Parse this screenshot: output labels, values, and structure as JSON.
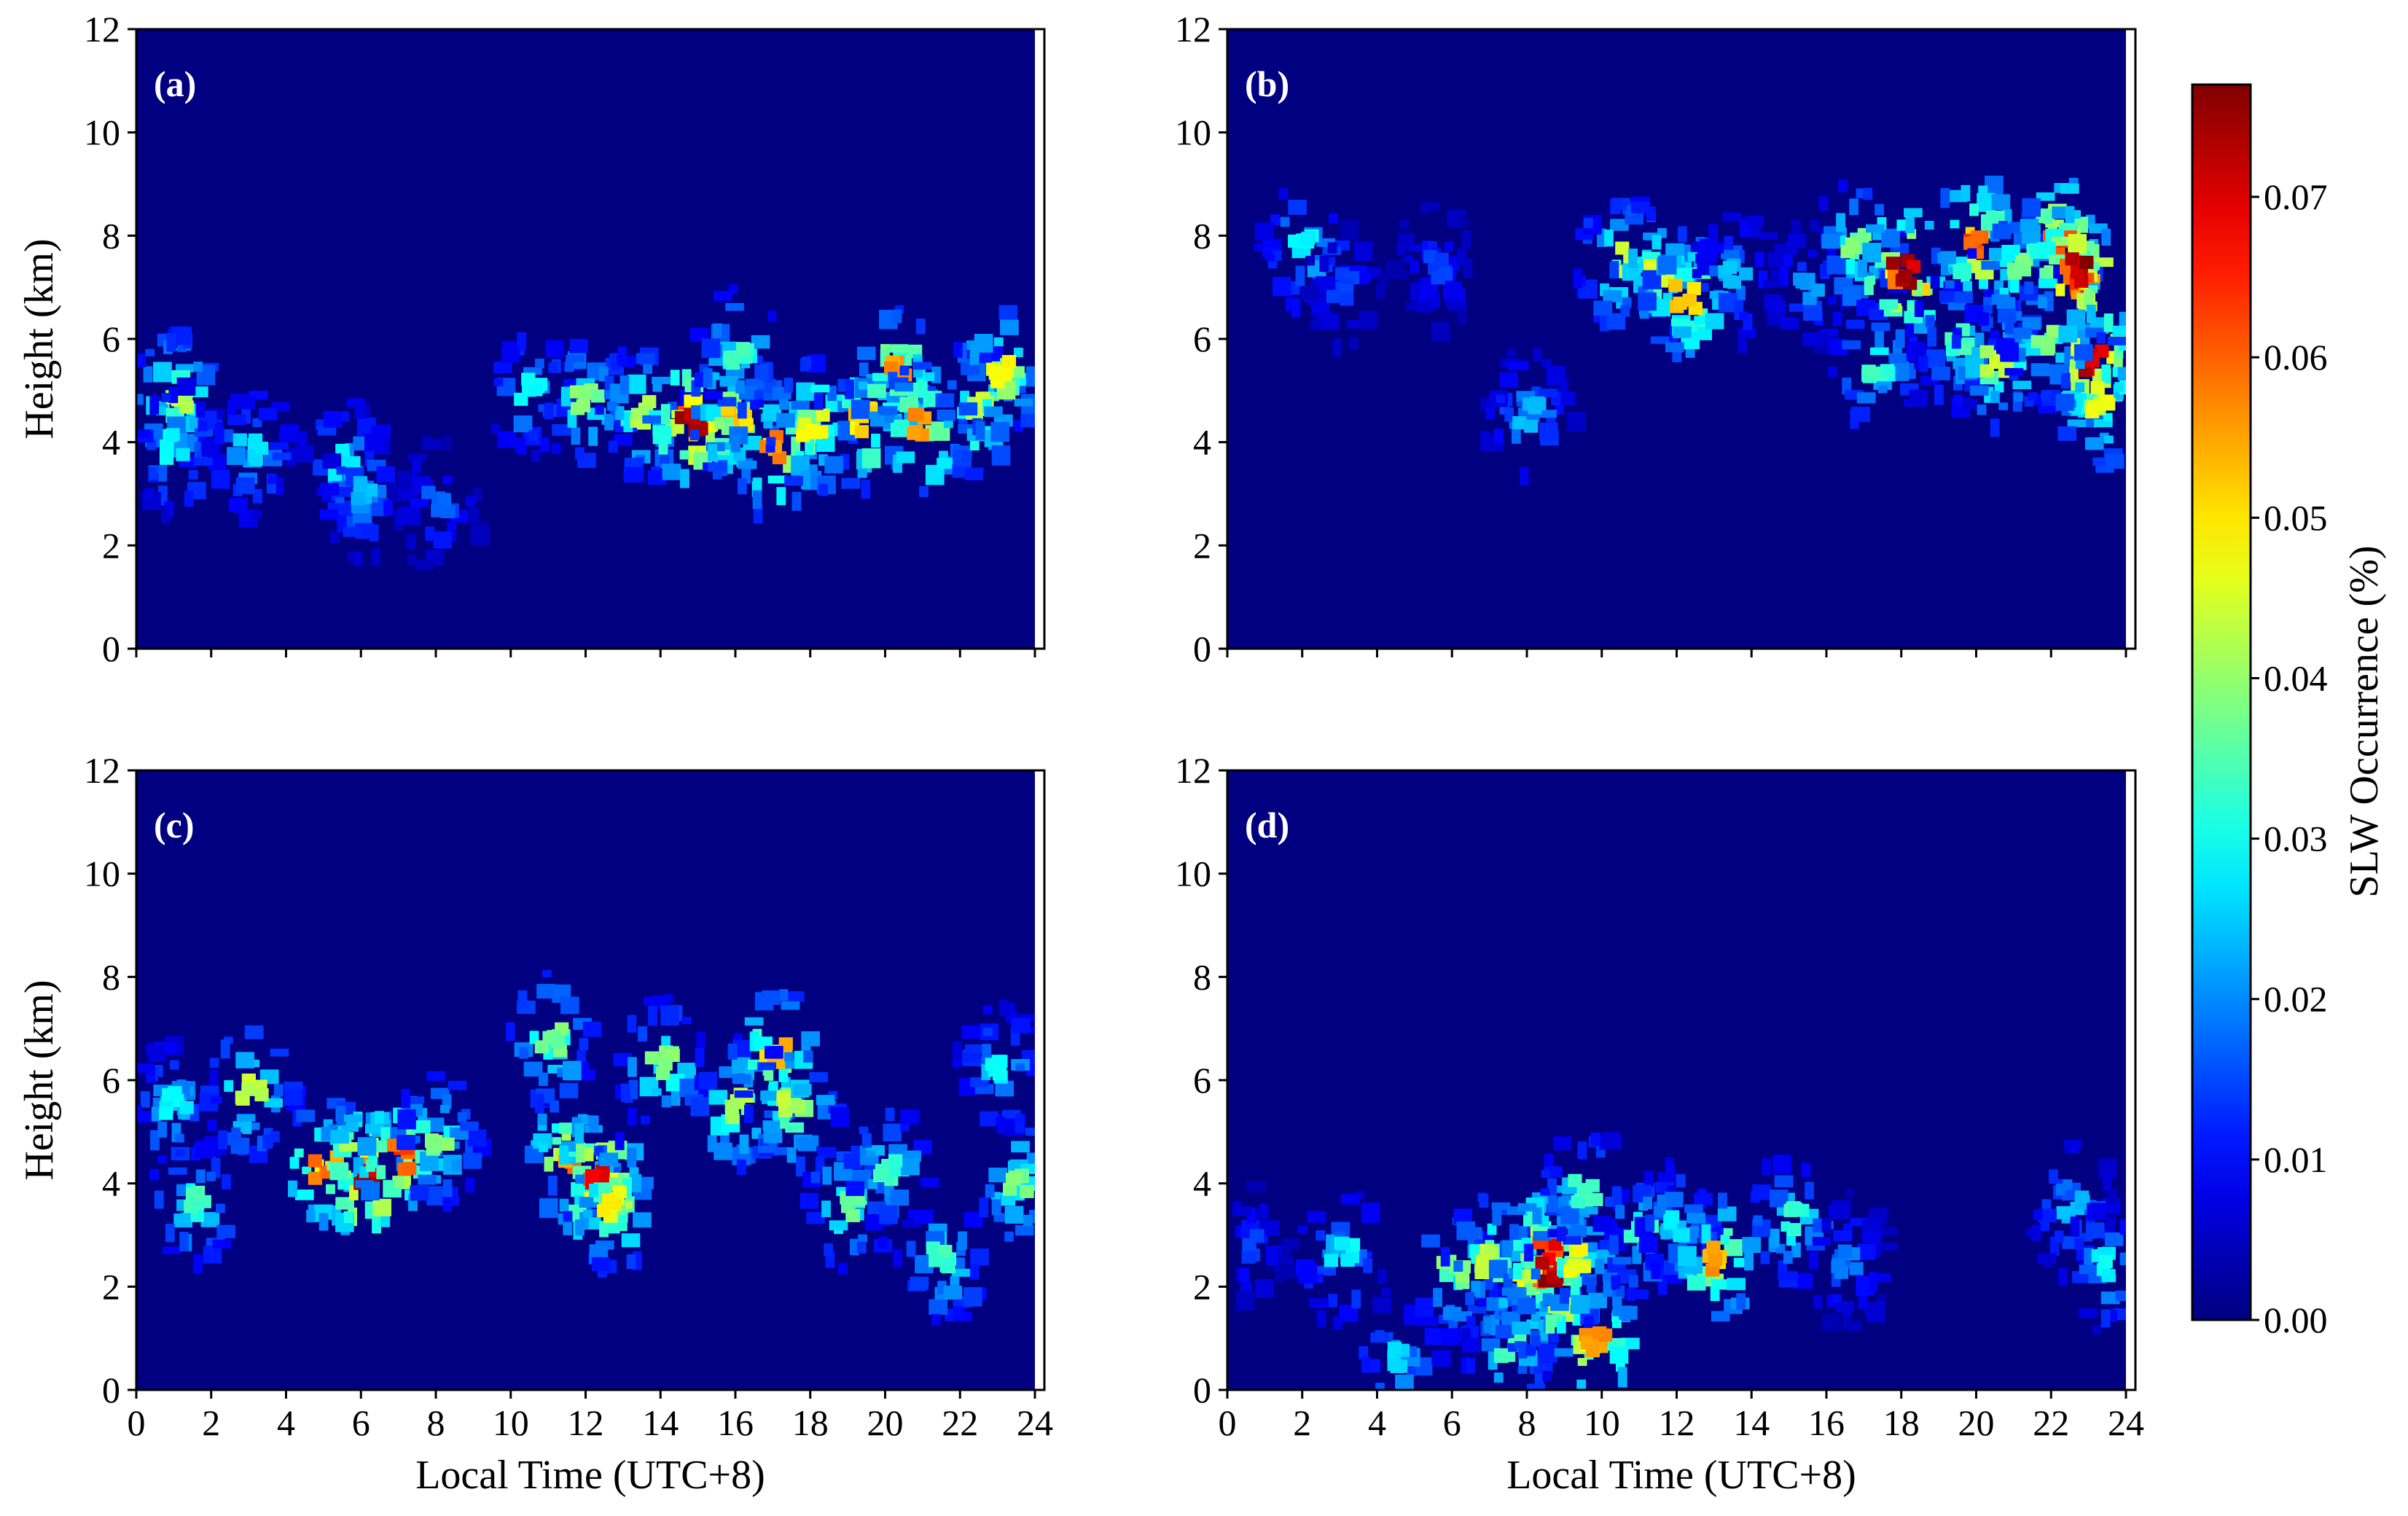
{
  "figure": {
    "colorbar_label": "SLW Occurrence (%)",
    "colorbar_ticks": [
      "0.00",
      "0.01",
      "0.02",
      "0.03",
      "0.04",
      "0.05",
      "0.06",
      "0.07"
    ]
  },
  "chart_data": [
    {
      "type": "heatmap",
      "panel_label": "(a)",
      "xlabel": "",
      "ylabel": "Height (km)",
      "xlim": [
        0,
        24
      ],
      "ylim": [
        0,
        12
      ],
      "xticks": [
        0,
        2,
        4,
        6,
        8,
        10,
        12,
        14,
        16,
        18,
        20,
        22,
        24
      ],
      "yticks": [
        0,
        2,
        4,
        6,
        8,
        10,
        12
      ],
      "x_tick_labels_visible": false,
      "colormap": "jet",
      "zlim": [
        0,
        0.077
      ],
      "blobs": [
        {
          "x": 1,
          "y": 4.9,
          "value": 0.045
        },
        {
          "x": 1,
          "y": 3.9,
          "value": 0.03
        },
        {
          "x": 3,
          "y": 3.8,
          "value": 0.028
        },
        {
          "x": 5.5,
          "y": 3.6,
          "value": 0.03
        },
        {
          "x": 6,
          "y": 3,
          "value": 0.025
        },
        {
          "x": 8,
          "y": 2.8,
          "value": 0.018
        },
        {
          "x": 10.5,
          "y": 5,
          "value": 0.03
        },
        {
          "x": 12,
          "y": 4.8,
          "value": 0.04
        },
        {
          "x": 13.5,
          "y": 4.6,
          "value": 0.045
        },
        {
          "x": 14.8,
          "y": 4.4,
          "value": 0.077
        },
        {
          "x": 16,
          "y": 4.5,
          "value": 0.055
        },
        {
          "x": 17,
          "y": 3.9,
          "value": 0.06
        },
        {
          "x": 18,
          "y": 4.3,
          "value": 0.05
        },
        {
          "x": 19.3,
          "y": 4.4,
          "value": 0.055
        },
        {
          "x": 20.2,
          "y": 5.3,
          "value": 0.058
        },
        {
          "x": 21,
          "y": 4.3,
          "value": 0.06
        },
        {
          "x": 22.5,
          "y": 4.6,
          "value": 0.045
        },
        {
          "x": 23,
          "y": 5.3,
          "value": 0.05
        },
        {
          "x": 16,
          "y": 5.7,
          "value": 0.035
        }
      ]
    },
    {
      "type": "heatmap",
      "panel_label": "(b)",
      "xlabel": "",
      "ylabel": "",
      "xlim": [
        0,
        24
      ],
      "ylim": [
        0,
        12
      ],
      "xticks": [
        0,
        2,
        4,
        6,
        8,
        10,
        12,
        14,
        16,
        18,
        20,
        22,
        24
      ],
      "yticks": [
        0,
        2,
        4,
        6,
        8,
        10,
        12
      ],
      "x_tick_labels_visible": false,
      "colormap": "jet",
      "zlim": [
        0,
        0.077
      ],
      "blobs": [
        {
          "x": 2,
          "y": 7.8,
          "value": 0.03
        },
        {
          "x": 3,
          "y": 7,
          "value": 0.015
        },
        {
          "x": 5.5,
          "y": 7.4,
          "value": 0.015
        },
        {
          "x": 8,
          "y": 4.5,
          "value": 0.025
        },
        {
          "x": 10.5,
          "y": 7.5,
          "value": 0.045
        },
        {
          "x": 11.4,
          "y": 7.3,
          "value": 0.048
        },
        {
          "x": 12.2,
          "y": 6.8,
          "value": 0.055
        },
        {
          "x": 13.5,
          "y": 7.2,
          "value": 0.025
        },
        {
          "x": 15.5,
          "y": 7,
          "value": 0.022
        },
        {
          "x": 16.8,
          "y": 7.8,
          "value": 0.04
        },
        {
          "x": 17.3,
          "y": 5.5,
          "value": 0.035
        },
        {
          "x": 18,
          "y": 7.3,
          "value": 0.077
        },
        {
          "x": 19.5,
          "y": 6,
          "value": 0.035
        },
        {
          "x": 20,
          "y": 7.9,
          "value": 0.065
        },
        {
          "x": 20.5,
          "y": 5.5,
          "value": 0.045
        },
        {
          "x": 21,
          "y": 7.3,
          "value": 0.04
        },
        {
          "x": 21.8,
          "y": 6,
          "value": 0.04
        },
        {
          "x": 22.2,
          "y": 7.9,
          "value": 0.065
        },
        {
          "x": 22.6,
          "y": 7.3,
          "value": 0.077
        },
        {
          "x": 23.1,
          "y": 5.6,
          "value": 0.074
        },
        {
          "x": 23.3,
          "y": 4.8,
          "value": 0.05
        }
      ]
    },
    {
      "type": "heatmap",
      "panel_label": "(c)",
      "xlabel": "Local Time (UTC+8)",
      "ylabel": "Height (km)",
      "xlim": [
        0,
        24
      ],
      "ylim": [
        0,
        12
      ],
      "xticks": [
        0,
        2,
        4,
        6,
        8,
        10,
        12,
        14,
        16,
        18,
        20,
        22,
        24
      ],
      "yticks": [
        0,
        2,
        4,
        6,
        8,
        10,
        12
      ],
      "x_tick_labels_visible": true,
      "colormap": "jet",
      "zlim": [
        0,
        0.077
      ],
      "blobs": [
        {
          "x": 1,
          "y": 5.5,
          "value": 0.03
        },
        {
          "x": 1.5,
          "y": 3.6,
          "value": 0.035
        },
        {
          "x": 3,
          "y": 5.8,
          "value": 0.045
        },
        {
          "x": 5,
          "y": 4.3,
          "value": 0.06
        },
        {
          "x": 6,
          "y": 4.2,
          "value": 0.077
        },
        {
          "x": 7,
          "y": 4.5,
          "value": 0.065
        },
        {
          "x": 8,
          "y": 4.8,
          "value": 0.04
        },
        {
          "x": 11,
          "y": 6.8,
          "value": 0.04
        },
        {
          "x": 11.5,
          "y": 4.4,
          "value": 0.06
        },
        {
          "x": 12.3,
          "y": 4.1,
          "value": 0.075
        },
        {
          "x": 12.7,
          "y": 3.6,
          "value": 0.05
        },
        {
          "x": 14,
          "y": 6.3,
          "value": 0.04
        },
        {
          "x": 16,
          "y": 5.5,
          "value": 0.045
        },
        {
          "x": 17,
          "y": 6.5,
          "value": 0.055
        },
        {
          "x": 17.5,
          "y": 5.5,
          "value": 0.045
        },
        {
          "x": 19,
          "y": 3.6,
          "value": 0.04
        },
        {
          "x": 20,
          "y": 4.3,
          "value": 0.035
        },
        {
          "x": 21.5,
          "y": 2.5,
          "value": 0.035
        },
        {
          "x": 23,
          "y": 6.2,
          "value": 0.03
        },
        {
          "x": 23.5,
          "y": 4,
          "value": 0.04
        }
      ]
    },
    {
      "type": "heatmap",
      "panel_label": "(d)",
      "xlabel": "Local Time (UTC+8)",
      "ylabel": "",
      "xlim": [
        0,
        24
      ],
      "ylim": [
        0,
        12
      ],
      "xticks": [
        0,
        2,
        4,
        6,
        8,
        10,
        12,
        14,
        16,
        18,
        20,
        22,
        24
      ],
      "yticks": [
        0,
        2,
        4,
        6,
        8,
        10,
        12
      ],
      "x_tick_labels_visible": true,
      "colormap": "jet",
      "zlim": [
        0,
        0.077
      ],
      "blobs": [
        {
          "x": 0.5,
          "y": 2.8,
          "value": 0.015
        },
        {
          "x": 3,
          "y": 2.6,
          "value": 0.03
        },
        {
          "x": 4.5,
          "y": 0.6,
          "value": 0.028
        },
        {
          "x": 6,
          "y": 2.3,
          "value": 0.04
        },
        {
          "x": 7,
          "y": 2.5,
          "value": 0.045
        },
        {
          "x": 7.5,
          "y": 0.8,
          "value": 0.035
        },
        {
          "x": 8,
          "y": 2,
          "value": 0.05
        },
        {
          "x": 8.5,
          "y": 2.7,
          "value": 0.07
        },
        {
          "x": 8.6,
          "y": 2.2,
          "value": 0.077
        },
        {
          "x": 9.2,
          "y": 2.5,
          "value": 0.05
        },
        {
          "x": 9.8,
          "y": 0.9,
          "value": 0.06
        },
        {
          "x": 9.5,
          "y": 3.8,
          "value": 0.035
        },
        {
          "x": 11,
          "y": 3,
          "value": 0.035
        },
        {
          "x": 12,
          "y": 3.2,
          "value": 0.03
        },
        {
          "x": 13,
          "y": 2.5,
          "value": 0.058
        },
        {
          "x": 15,
          "y": 3.3,
          "value": 0.035
        },
        {
          "x": 16.5,
          "y": 2.5,
          "value": 0.02
        },
        {
          "x": 22.5,
          "y": 3.5,
          "value": 0.025
        },
        {
          "x": 23.5,
          "y": 2.4,
          "value": 0.03
        }
      ]
    }
  ]
}
